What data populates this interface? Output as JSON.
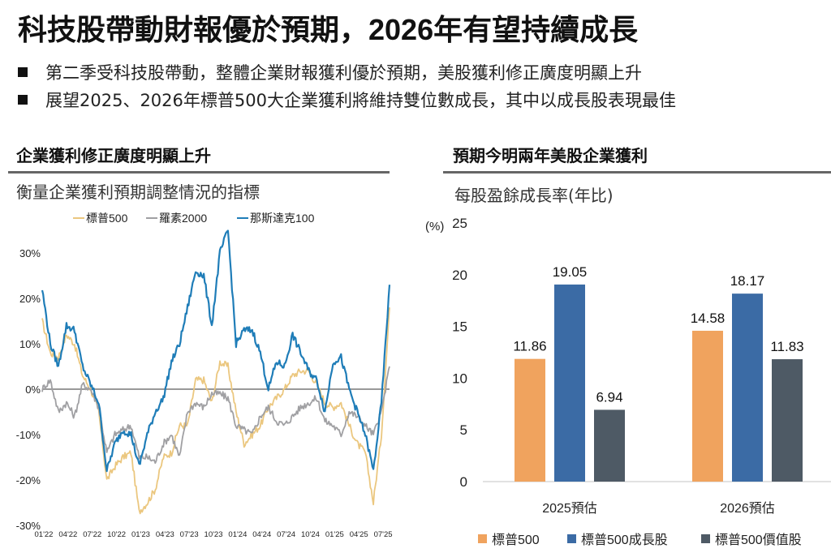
{
  "header": {
    "title": "科技股帶動財報優於預期，2026年有望持續成長",
    "bullets": [
      "第二季受科技股帶動，整體企業財報獲利優於預期，美股獲利修正廣度明顯上升",
      "展望2025、2026年標普500大企業獲利將維持雙位數成長，其中以成長股表現最佳"
    ]
  },
  "left_section": {
    "title": "企業獲利修正廣度明顯上升",
    "subtitle": "衡量企業獲利預期調整情況的指標"
  },
  "right_section": {
    "title": "預期今明兩年美股企業獲利",
    "subtitle": "每股盈餘成長率(年比)"
  },
  "chart_data": [
    {
      "type": "line",
      "title": "",
      "xlabel": "",
      "ylabel": "",
      "ylim": [
        -30,
        35
      ],
      "y_ticks": [
        "30%",
        "20%",
        "10%",
        "0%",
        "-10%",
        "-20%",
        "-30%"
      ],
      "y_tick_values": [
        30,
        20,
        10,
        0,
        -10,
        -20,
        -30
      ],
      "x_ticks": [
        "01'22",
        "04'22",
        "07'22",
        "10'22",
        "01'23",
        "04'23",
        "07'23",
        "10'23",
        "01'24",
        "04'24",
        "07'24",
        "10'24",
        "01'25",
        "04'25",
        "07'25"
      ],
      "x_range_months": [
        0,
        43
      ],
      "legend": "top",
      "grid": false,
      "zero_line": true,
      "x": [
        0,
        1,
        2,
        3,
        4,
        5,
        6,
        7,
        8,
        9,
        10,
        11,
        12,
        13,
        14,
        15,
        16,
        17,
        18,
        19,
        20,
        21,
        22,
        23,
        24,
        25,
        26,
        27,
        28,
        29,
        30,
        31,
        32,
        33,
        34,
        35,
        36,
        37,
        38,
        39,
        40,
        41,
        42,
        43
      ],
      "series": [
        {
          "name": "標普500",
          "color": "#EBC77F",
          "values": [
            15,
            8,
            7,
            12,
            10,
            3,
            0,
            -5,
            -20,
            -17,
            -15,
            -14,
            -27,
            -25,
            -22,
            -15,
            -14,
            -8,
            -8,
            2,
            2,
            -3,
            6,
            5,
            -5,
            -12,
            -10,
            -8,
            -4,
            -2,
            0,
            3,
            4,
            4,
            1,
            -3,
            -4,
            -3,
            -8,
            -12,
            -14,
            -25,
            -10,
            18
          ]
        },
        {
          "name": "羅素2000",
          "color": "#A0A0A3",
          "values": [
            0,
            2,
            -5,
            -3,
            -6,
            1,
            0,
            -4,
            -14,
            -10,
            -9,
            -8,
            -15,
            -15,
            -16,
            -12,
            -10,
            -15,
            -5,
            -3,
            -4,
            -1,
            -1,
            -2,
            -8,
            -9,
            -10,
            -6,
            -4,
            -7,
            -8,
            -6,
            -4,
            -3,
            -2,
            -7,
            -8,
            -10,
            -5,
            -6,
            -8,
            -10,
            -5,
            5
          ]
        },
        {
          "name": "那斯達克100",
          "color": "#1F7DB8",
          "values": [
            22,
            10,
            5,
            14,
            13,
            5,
            1,
            -3,
            -18,
            -12,
            -9,
            -10,
            -17,
            -10,
            -5,
            -2,
            6,
            10,
            18,
            26,
            25,
            14,
            30,
            35,
            10,
            13,
            13,
            8,
            0,
            6,
            5,
            12,
            8,
            4,
            2,
            -5,
            6,
            7,
            0,
            -5,
            -10,
            -18,
            -3,
            23
          ]
        }
      ]
    },
    {
      "type": "bar",
      "title": "",
      "xlabel": "",
      "ylabel": "(%)",
      "ylim": [
        0,
        25
      ],
      "y_ticks": [
        "0",
        "5",
        "10",
        "15",
        "20",
        "25"
      ],
      "y_tick_values": [
        0,
        5,
        10,
        15,
        20,
        25
      ],
      "categories": [
        "2025預估",
        "2026預估"
      ],
      "legend": "bottom",
      "grid": false,
      "series": [
        {
          "name": "標普500",
          "color": "#F0A35E",
          "values": [
            11.86,
            14.58
          ],
          "labels": [
            "11.86",
            "14.58"
          ]
        },
        {
          "name": "標普500成長股",
          "color": "#3B6BA5",
          "values": [
            19.05,
            18.17
          ],
          "labels": [
            "19.05",
            "18.17"
          ]
        },
        {
          "name": "標普500價值股",
          "color": "#4E5A65",
          "values": [
            6.94,
            11.83
          ],
          "labels": [
            "6.94",
            "11.83"
          ]
        }
      ]
    }
  ]
}
